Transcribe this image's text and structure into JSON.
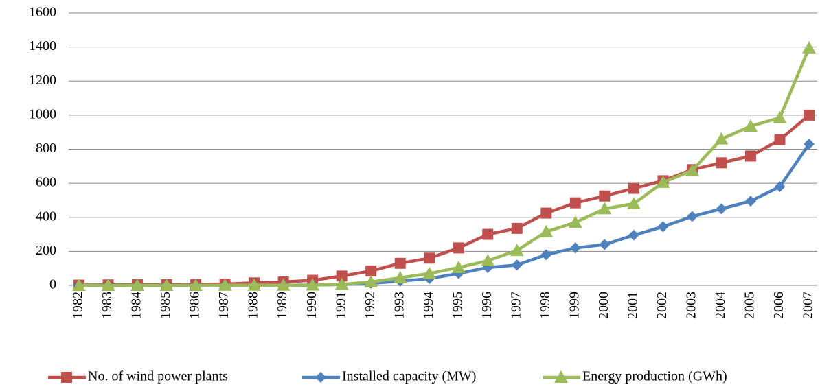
{
  "chart_data": {
    "type": "line",
    "categories": [
      "1982",
      "1983",
      "1984",
      "1985",
      "1986",
      "1987",
      "1988",
      "1989",
      "1990",
      "1991",
      "1992",
      "1993",
      "1994",
      "1995",
      "1996",
      "1997",
      "1998",
      "1999",
      "2000",
      "2001",
      "2002",
      "2003",
      "2004",
      "2005",
      "2006",
      "2007"
    ],
    "series": [
      {
        "name": "No. of wind power plants",
        "color": "#c0504d",
        "marker": "square",
        "values": [
          2,
          3,
          4,
          4,
          5,
          8,
          15,
          20,
          30,
          55,
          85,
          130,
          160,
          220,
          300,
          335,
          425,
          485,
          525,
          570,
          615,
          680,
          720,
          760,
          855,
          1000
        ]
      },
      {
        "name": "Installed capacity (MW)",
        "color": "#4f81bd",
        "marker": "diamond",
        "values": [
          0,
          0,
          0,
          0,
          0,
          1,
          1,
          1,
          2,
          5,
          12,
          25,
          40,
          70,
          105,
          120,
          180,
          220,
          240,
          295,
          345,
          405,
          450,
          495,
          580,
          830
        ]
      },
      {
        "name": "Energy production (GWh)",
        "color": "#9bbb59",
        "marker": "triangle",
        "values": [
          0,
          0,
          0,
          0,
          0,
          1,
          1,
          1,
          2,
          6,
          20,
          45,
          70,
          105,
          145,
          205,
          315,
          370,
          450,
          480,
          605,
          675,
          860,
          935,
          985,
          1395
        ]
      }
    ],
    "ylim": [
      0,
      1600
    ],
    "yticks": [
      0,
      200,
      400,
      600,
      800,
      1000,
      1200,
      1400,
      1600
    ],
    "grid": true,
    "legend": "bottom"
  }
}
